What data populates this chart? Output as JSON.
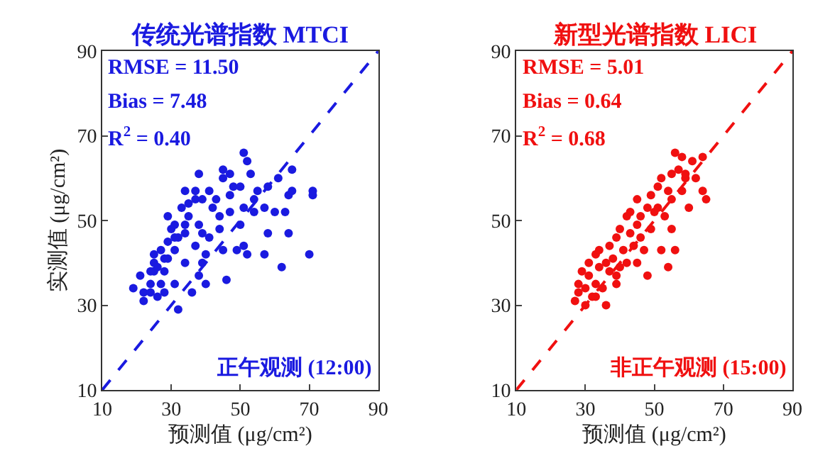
{
  "chart_data": [
    {
      "type": "scatter",
      "title": "传统光谱指数 MTCI",
      "xlabel": "预测值 (μg/cm²)",
      "ylabel": "实测值 (μg/cm²)",
      "xlim": [
        10,
        90
      ],
      "ylim": [
        10,
        90
      ],
      "xticks": [
        10,
        30,
        50,
        70,
        90
      ],
      "yticks": [
        10,
        30,
        50,
        70,
        90
      ],
      "color": "#1a1ae0",
      "annotations": [
        "RMSE = 11.50",
        "Bias = 7.48",
        "R$^{2}$ = 0.40",
        "正午观测 (12:00)"
      ],
      "series": [
        {
          "color": "#1a1ae0",
          "marker": "circle",
          "x": [
            19,
            21,
            22,
            22,
            24,
            24,
            25,
            25,
            25,
            26,
            27,
            27,
            28,
            28,
            28,
            29,
            29,
            29,
            30,
            31,
            31,
            31,
            32,
            32,
            33,
            34,
            34,
            34,
            35,
            35,
            36,
            37,
            37,
            38,
            38,
            38,
            39,
            39,
            39,
            40,
            41,
            41,
            42,
            43,
            44,
            44,
            45,
            45,
            45,
            46,
            47,
            47,
            47,
            48,
            49,
            50,
            51,
            51,
            52,
            52,
            53,
            54,
            54,
            55,
            57,
            57,
            58,
            58,
            60,
            61,
            62,
            63,
            64,
            64,
            65,
            65,
            70,
            71,
            71,
            50,
            51,
            37,
            34,
            24,
            26,
            31,
            40
          ],
          "values": [
            34,
            37,
            33,
            31,
            35,
            33,
            38,
            42,
            40,
            39,
            35,
            43,
            41,
            33,
            38,
            41,
            45,
            51,
            48,
            49,
            43,
            35,
            46,
            29,
            53,
            49,
            47,
            40,
            54,
            51,
            33,
            44,
            55,
            61,
            49,
            37,
            55,
            47,
            40,
            35,
            46,
            57,
            53,
            55,
            51,
            48,
            60,
            43,
            62,
            36,
            56,
            61,
            52,
            58,
            43,
            58,
            66,
            44,
            64,
            42,
            61,
            52,
            55,
            57,
            53,
            42,
            47,
            58,
            52,
            60,
            39,
            52,
            47,
            56,
            62,
            57,
            42,
            57,
            56,
            49,
            53,
            57,
            57,
            38,
            32,
            46,
            42
          ]
        },
        {
          "type": "line",
          "color": "#1a1ae0",
          "line_style": "dashed",
          "marker": "none",
          "x": [
            10,
            90
          ],
          "values": [
            10,
            90
          ]
        }
      ]
    },
    {
      "type": "scatter",
      "title": "新型光谱指数 LICI",
      "xlabel": "预测值 (μg/cm²)",
      "xlim": [
        10,
        90
      ],
      "ylim": [
        10,
        90
      ],
      "xticks": [
        10,
        30,
        50,
        70,
        90
      ],
      "yticks": [
        10,
        30,
        50,
        70,
        90
      ],
      "color": "#f01010",
      "annotations": [
        "RMSE = 5.01",
        "Bias = 0.64",
        "R$^{2}$ = 0.68",
        "非正午观测 (15:00)"
      ],
      "series": [
        {
          "color": "#f01010",
          "marker": "circle",
          "x": [
            27,
            28,
            28,
            29,
            30,
            30,
            31,
            31,
            32,
            33,
            33,
            34,
            34,
            35,
            36,
            36,
            37,
            37,
            38,
            39,
            39,
            40,
            40,
            41,
            42,
            42,
            43,
            43,
            44,
            45,
            45,
            46,
            46,
            47,
            48,
            48,
            49,
            49,
            50,
            51,
            51,
            52,
            52,
            53,
            54,
            54,
            55,
            55,
            56,
            56,
            57,
            58,
            58,
            59,
            59,
            60,
            61,
            62,
            64,
            65,
            64,
            55,
            45,
            39,
            33
          ],
          "values": [
            31,
            35,
            33,
            38,
            30,
            34,
            37,
            40,
            32,
            42,
            35,
            39,
            43,
            34,
            40,
            30,
            44,
            38,
            41,
            35,
            46,
            39,
            48,
            43,
            51,
            40,
            47,
            52,
            44,
            49,
            55,
            46,
            51,
            43,
            37,
            53,
            48,
            56,
            52,
            58,
            53,
            43,
            60,
            51,
            57,
            39,
            61,
            55,
            66,
            43,
            62,
            57,
            65,
            60,
            61,
            53,
            64,
            60,
            57,
            55,
            65,
            48,
            40,
            37,
            32
          ]
        },
        {
          "type": "line",
          "color": "#f01010",
          "line_style": "dashed",
          "marker": "none",
          "x": [
            10,
            90
          ],
          "values": [
            10,
            90
          ]
        }
      ]
    }
  ]
}
